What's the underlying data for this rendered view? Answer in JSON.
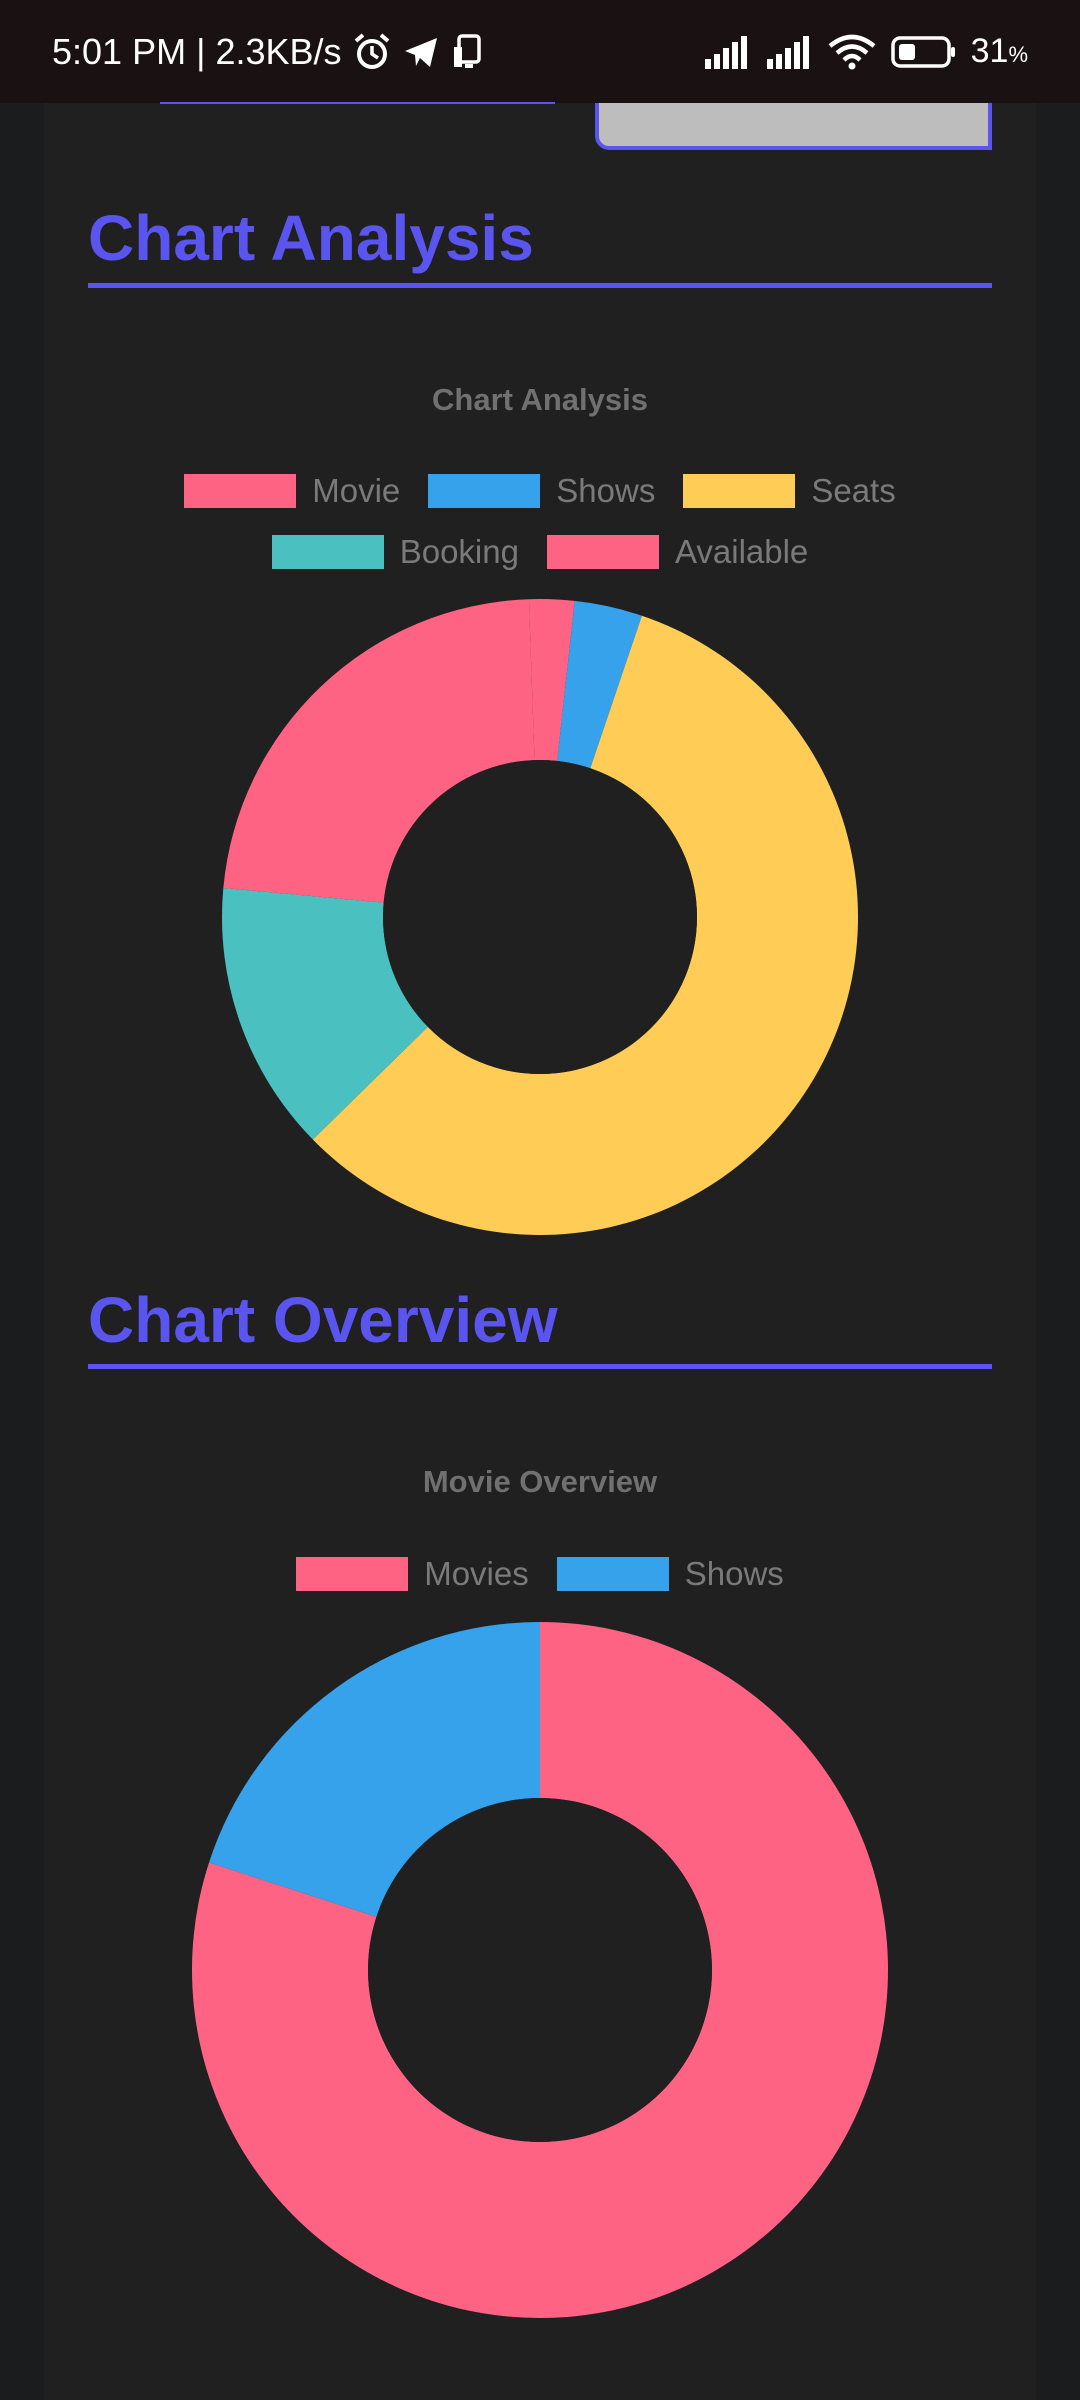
{
  "status_bar": {
    "time": "5:01 PM",
    "separator": "|",
    "net_speed": "2.3KB/s",
    "battery": "31",
    "battery_unit": "%",
    "icons": [
      "alarm-icon",
      "telegram-icon",
      "cast-icon",
      "signal-icon",
      "signal-icon",
      "wifi-icon",
      "battery-icon"
    ]
  },
  "sections": {
    "analysis": {
      "heading": "Chart Analysis"
    },
    "overview": {
      "heading": "Chart Overview"
    }
  },
  "colors": {
    "accent": "#5b55f0",
    "pink": "#ff6384",
    "blue": "#36a2eb",
    "yellow": "#ffcd56",
    "teal": "#4bc0c0",
    "panel": "#202020"
  },
  "chart_data": [
    {
      "type": "pie",
      "title": "Chart Analysis",
      "categories": [
        "Movie",
        "Shows",
        "Seats",
        "Booking",
        "Available"
      ],
      "values": [
        2,
        3,
        50,
        12,
        20
      ],
      "colors": [
        "#ff6384",
        "#36a2eb",
        "#ffcd56",
        "#4bc0c0",
        "#ff6384"
      ],
      "legend": "top",
      "donut": true
    },
    {
      "type": "pie",
      "title": "Movie Overview",
      "categories": [
        "Movies",
        "Shows"
      ],
      "values": [
        80,
        20
      ],
      "colors": [
        "#ff6384",
        "#36a2eb"
      ],
      "legend": "top",
      "donut": true
    }
  ]
}
